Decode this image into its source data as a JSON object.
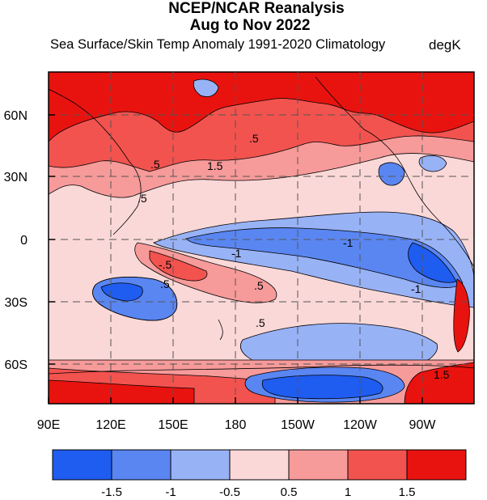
{
  "title_line1": "NCEP/NCAR Reanalysis",
  "title_line2": "Aug to Nov 2022",
  "subtitle": "Sea Surface/Skin Temp Anomaly  1991-2020 Climatology",
  "units": "degK",
  "x_ticks": [
    "90E",
    "120E",
    "150E",
    "180",
    "150W",
    "120W",
    "90W"
  ],
  "y_ticks": [
    "60N",
    "30N",
    "0",
    "30S",
    "60S"
  ],
  "colorbar": {
    "colors": [
      "#1f5cf0",
      "#5a86f2",
      "#98b2f6",
      "#fbd8d8",
      "#f79a9a",
      "#f2534f",
      "#e8130f"
    ],
    "labels": [
      "-1.5",
      "-1",
      "-0.5",
      "0.5",
      "1",
      "1.5"
    ]
  },
  "palette": {
    "strong_blue": "#1f5cf0",
    "mid_blue": "#5a86f2",
    "light_blue": "#98b2f6",
    "pale_pink": "#fbd8d8",
    "light_red": "#f79a9a",
    "mid_red": "#f2534f",
    "strong_red": "#e8130f"
  },
  "contour_labels": [
    ".5",
    "1.5",
    ".5",
    ".5",
    "-1",
    "-.5",
    ".5",
    ".5",
    "-1",
    ".5",
    "-1",
    "1.5"
  ]
}
